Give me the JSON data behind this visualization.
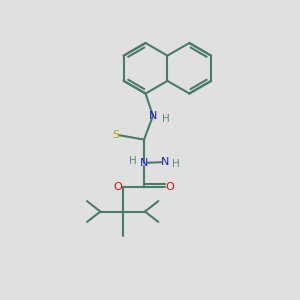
{
  "background_color": "#e0e0e0",
  "bond_color": "#4a7a6a",
  "n_color": "#1a1acc",
  "o_color": "#cc1111",
  "s_color": "#aaaa00",
  "h_color": "#5a8a7a",
  "font_size": 8.0,
  "lw": 1.5,
  "fig_width": 3.0,
  "fig_height": 3.0,
  "dpi": 100,
  "xlim": [
    0,
    10
  ],
  "ylim": [
    0,
    10
  ]
}
